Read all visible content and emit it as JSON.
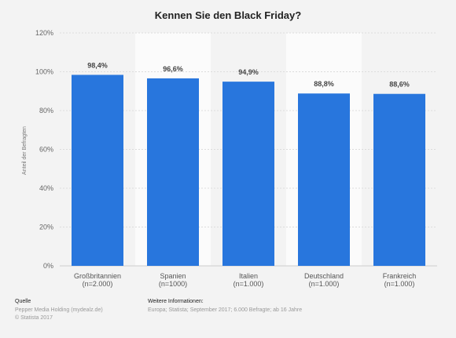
{
  "chart_data": {
    "type": "bar",
    "title": "Kennen Sie den Black Friday?",
    "xlabel": "",
    "ylabel": "Anteil der Befragten",
    "categories": [
      [
        "Großbritannien",
        "(n=2.000)"
      ],
      [
        "Spanien",
        "(n=1000)"
      ],
      [
        "Italien",
        "(n=1.000)"
      ],
      [
        "Deutschland",
        "(n=1.000)"
      ],
      [
        "Frankreich",
        "(n=1.000)"
      ]
    ],
    "values": [
      98.4,
      96.6,
      94.9,
      88.8,
      88.6
    ],
    "value_labels": [
      "98,4%",
      "96,6%",
      "94,9%",
      "88,8%",
      "88,6%"
    ],
    "ylim": [
      0,
      120
    ],
    "yticks": [
      0,
      20,
      40,
      60,
      80,
      100,
      120
    ],
    "ytick_labels": [
      "0%",
      "20%",
      "40%",
      "60%",
      "80%",
      "100%",
      "120%"
    ],
    "grid": true,
    "bar_color": "#2876dd"
  },
  "footer": {
    "source_heading": "Quelle",
    "source_lines": [
      "Pepper Media Holding (mydealz.de)",
      "© Statista 2017"
    ],
    "info_heading": "Weitere Informationen:",
    "info_text": "Europa; Statista; September 2017; 6.000 Befragte; ab 16 Jahre"
  }
}
